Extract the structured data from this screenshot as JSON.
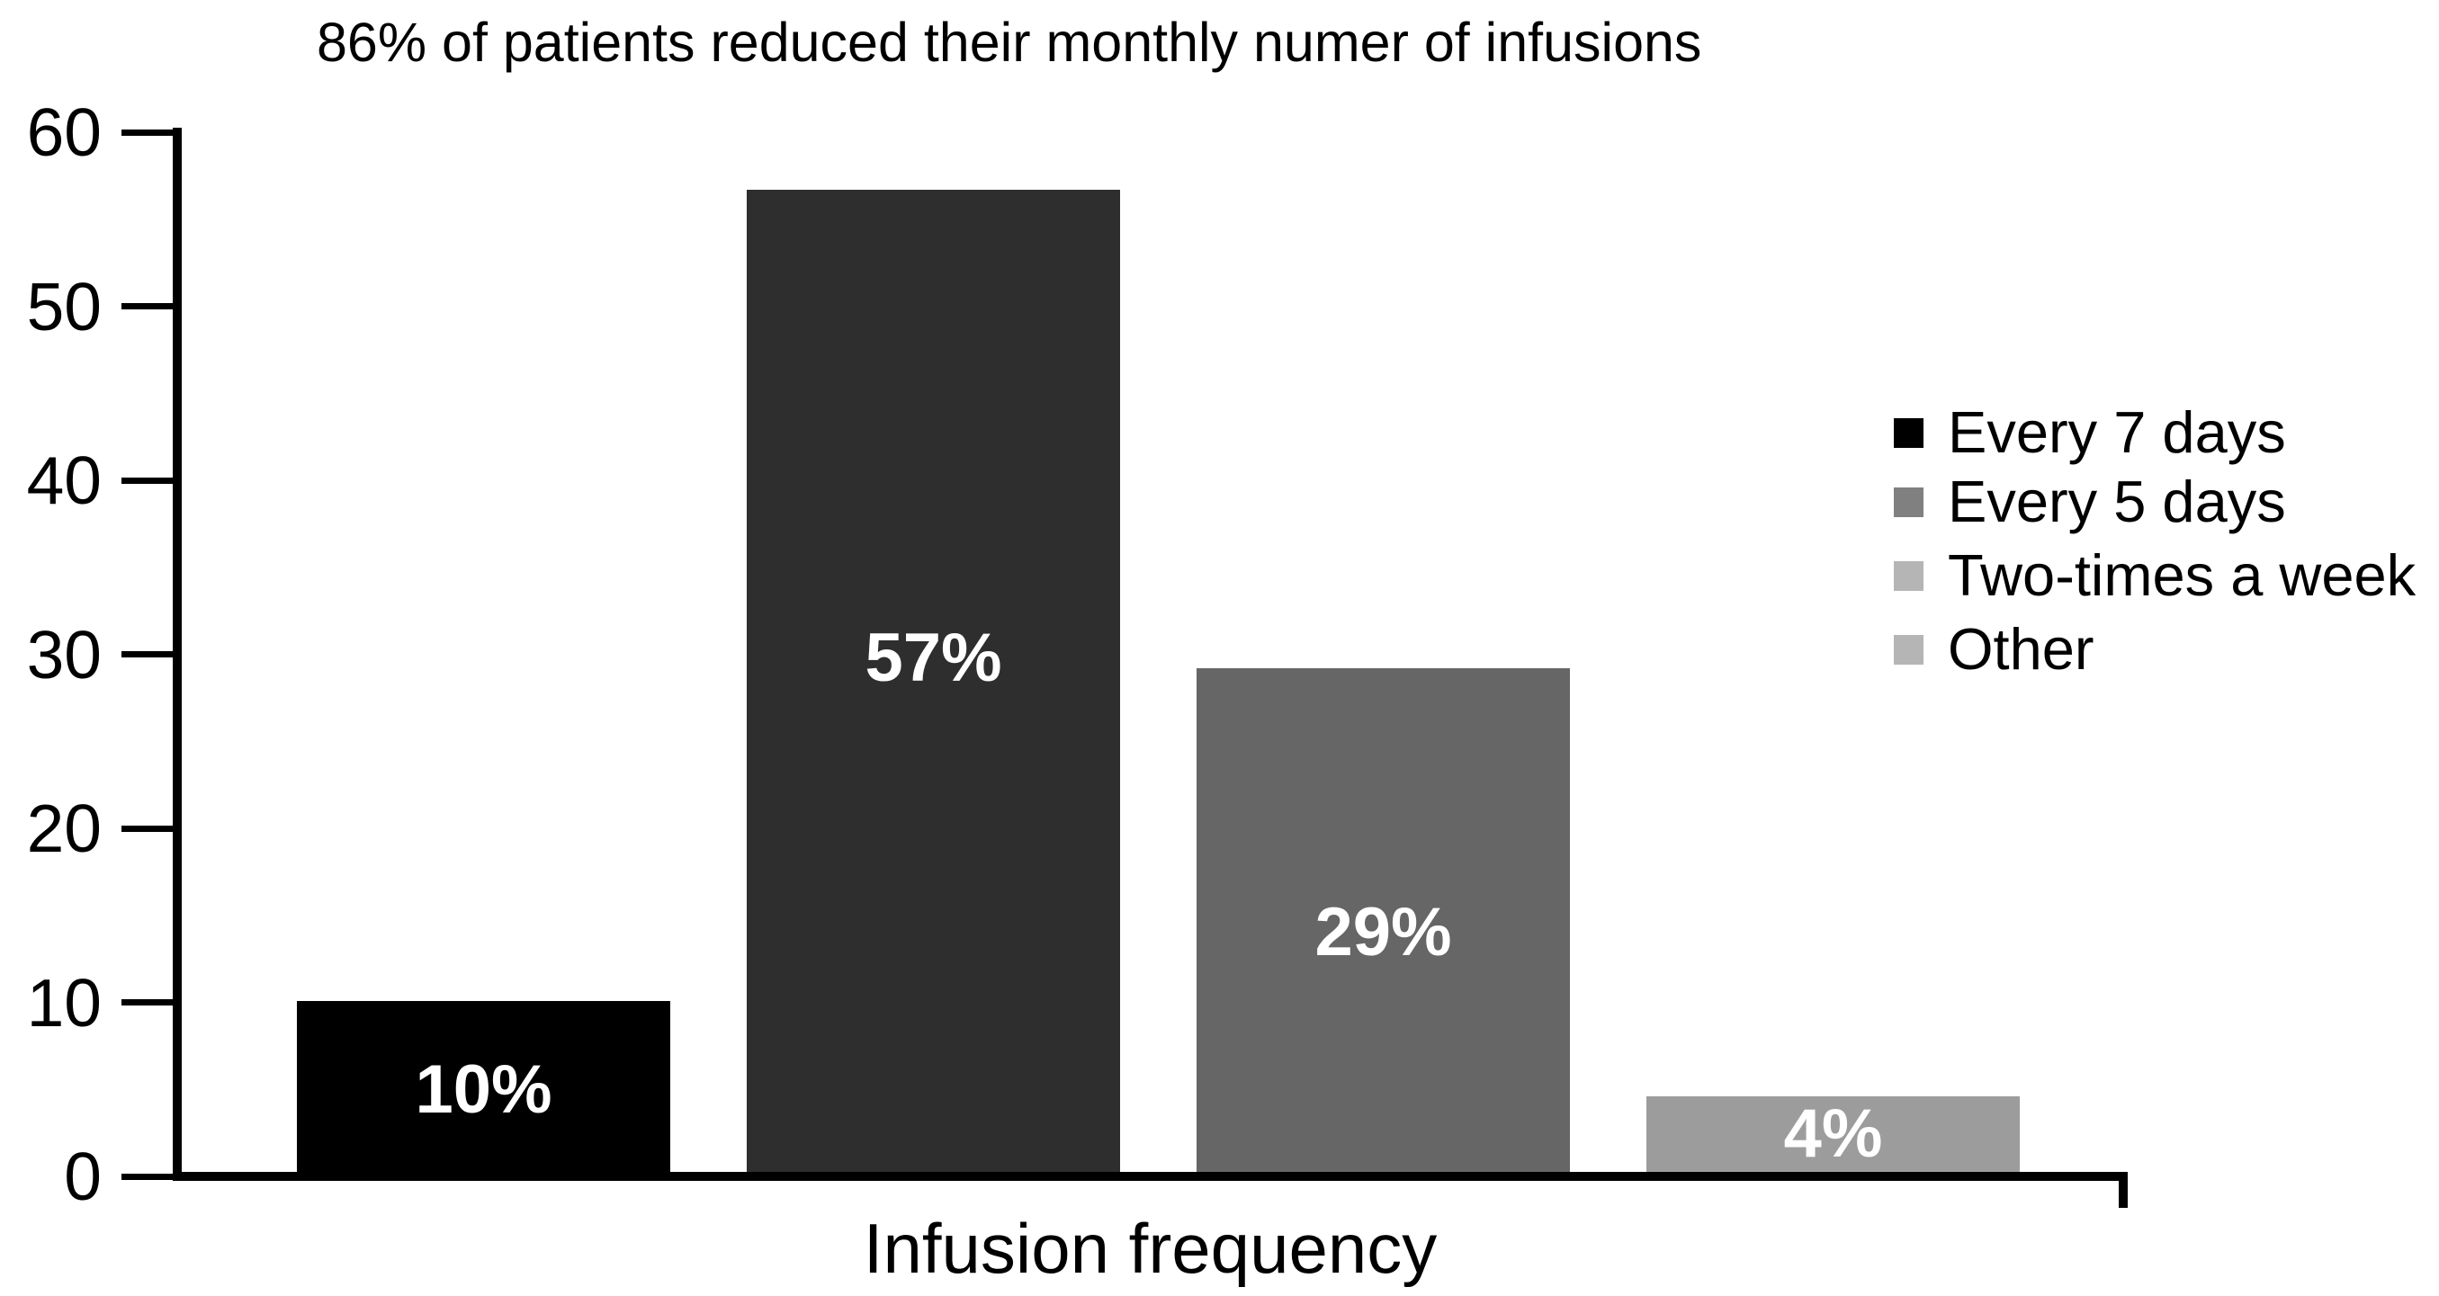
{
  "chart_data": {
    "type": "bar",
    "title": "86% of patients reduced their monthly numer of infusions",
    "xlabel": "Infusion frequency",
    "ylabel": "",
    "ylim": [
      0,
      60
    ],
    "yticks": [
      0,
      10,
      20,
      30,
      40,
      50,
      60
    ],
    "grid": false,
    "categories": [
      "Every 7 days",
      "Every 5 days",
      "Two-times a week",
      "Other"
    ],
    "values": [
      10,
      57,
      29,
      4
    ],
    "bar_labels": [
      "10%",
      "57%",
      "29%",
      "4%"
    ],
    "bar_heights_as_drawn": [
      10.1,
      56.7,
      29.2,
      4.6
    ],
    "bar_colors": [
      "#000000",
      "#2e2e2e",
      "#666666",
      "#9c9c9c"
    ],
    "bar_label_color": "#ffffff",
    "axis_color": "#000000",
    "background_color": "#ffffff",
    "legend": {
      "position": "right",
      "entries": [
        {
          "label": "Every 7 days",
          "swatch_color": "#000000"
        },
        {
          "label": "Every 5 days",
          "swatch_color": "#808080"
        },
        {
          "label": "Two-times a week",
          "swatch_color": "#b5b5b5"
        },
        {
          "label": "Other",
          "swatch_color": "#b5b5b5"
        }
      ]
    }
  }
}
